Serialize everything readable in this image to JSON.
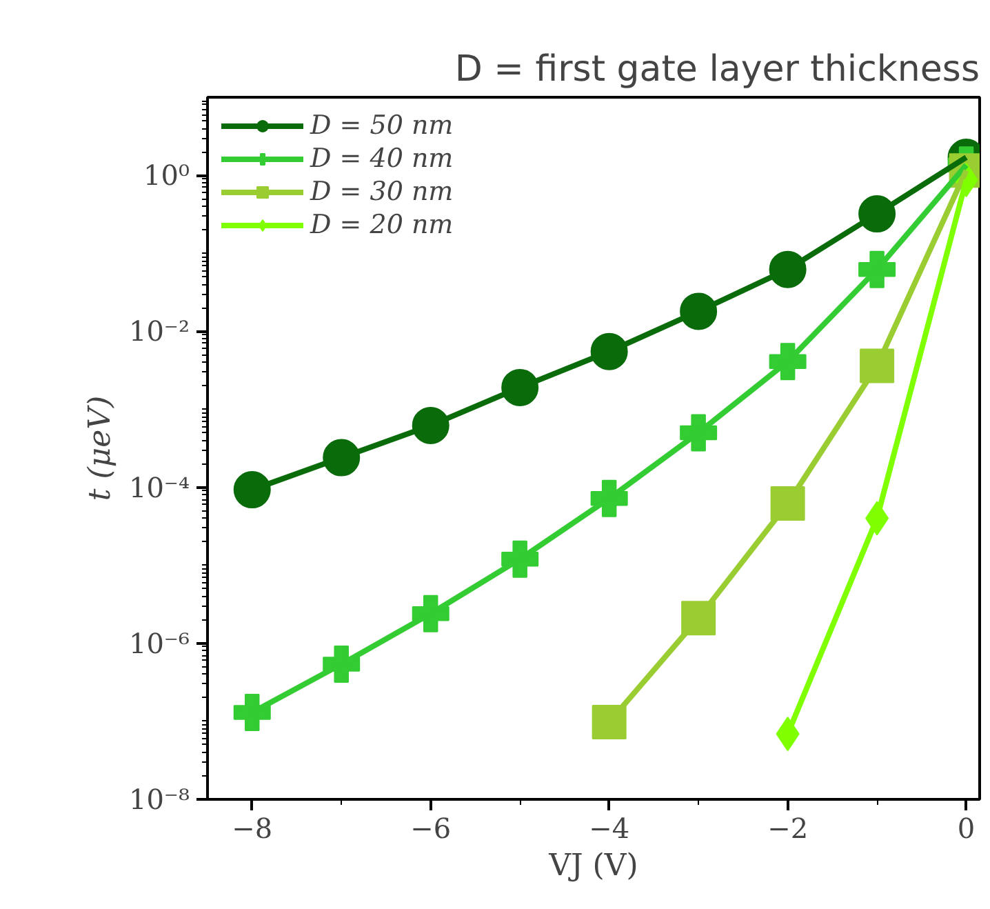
{
  "chart_data": {
    "type": "line",
    "title": "D = first gate layer thickness",
    "xlabel": "VJ (V)",
    "ylabel": "t (μeV)",
    "x": [
      -8,
      -7,
      -6,
      -5,
      -4,
      -3,
      -2,
      -1,
      0
    ],
    "series": [
      {
        "name": "D = 50 nm",
        "color": "#0a6b0a",
        "marker": "circle",
        "values": [
          9.3e-05,
          0.00024,
          0.00062,
          0.0019,
          0.0055,
          0.018,
          0.062,
          0.32,
          1.7
        ]
      },
      {
        "name": "D = 40 nm",
        "color": "#33cc33",
        "marker": "cross",
        "values": [
          1.3e-07,
          5.4e-07,
          2.4e-06,
          1.2e-05,
          7.2e-05,
          0.0005,
          0.0041,
          0.062,
          1.35
        ]
      },
      {
        "name": "D = 30 nm",
        "color": "#9acd32",
        "marker": "square",
        "values": [
          null,
          null,
          null,
          null,
          9.8e-08,
          2.1e-06,
          6.2e-05,
          0.0036,
          1.15
        ]
      },
      {
        "name": "D = 20 nm",
        "color": "#7fff00",
        "marker": "diamond",
        "values": [
          null,
          null,
          null,
          null,
          null,
          null,
          6.9e-08,
          4e-05,
          0.87
        ]
      }
    ],
    "log": "y",
    "grid": false,
    "legend": "top left",
    "line_style": "solid",
    "xlim": [
      -8.5,
      0.15
    ],
    "ylim": [
      1e-08,
      10
    ],
    "xticks": [
      {
        "value": -8,
        "label": "−8"
      },
      {
        "value": -6,
        "label": "−6"
      },
      {
        "value": -4,
        "label": "−4"
      },
      {
        "value": -2,
        "label": "−2"
      },
      0
    ],
    "yticks": [
      {
        "value": 1e-08,
        "label": "10⁻⁸"
      },
      {
        "value": 1e-06,
        "label": "10⁻⁶"
      },
      {
        "value": 0.0001,
        "label": "10⁻⁴"
      },
      {
        "value": 0.01,
        "label": "10⁻²"
      },
      {
        "value": 1,
        "label": "10⁰"
      }
    ]
  }
}
